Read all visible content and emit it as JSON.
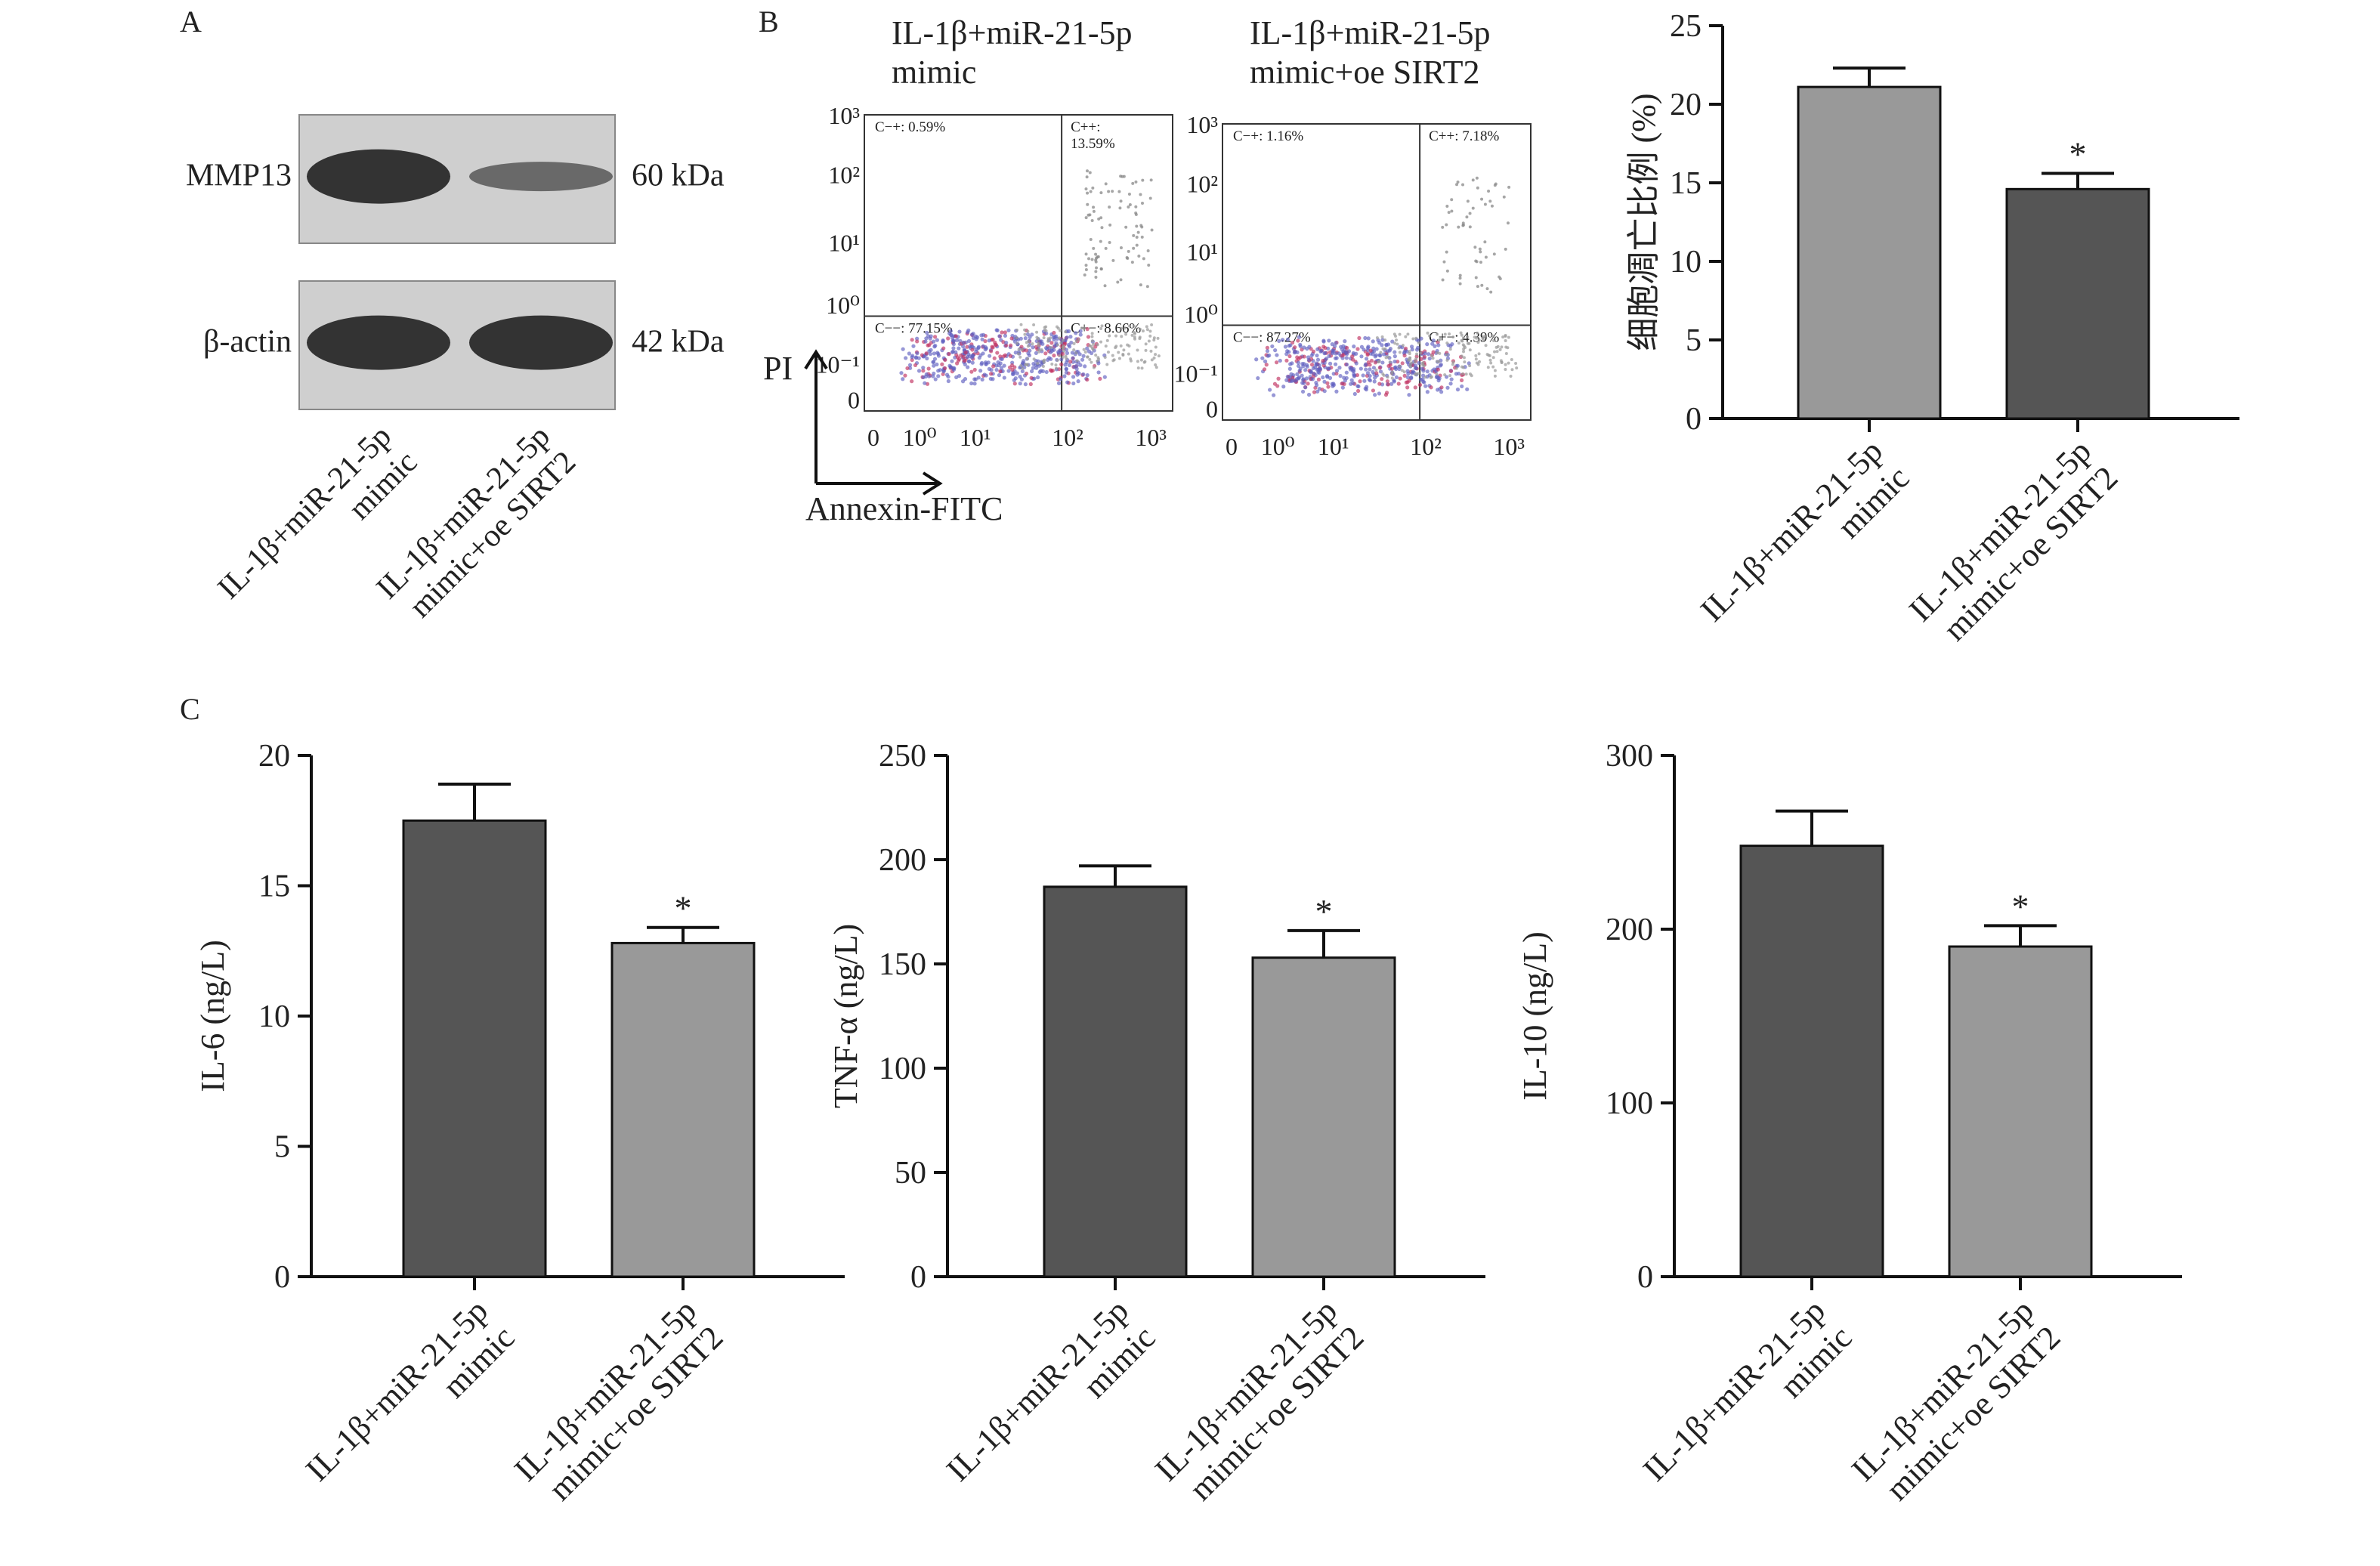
{
  "panel_labels": {
    "a": "A",
    "b": "B",
    "c": "C"
  },
  "colors": {
    "dark_bar": "#555555",
    "light_bar": "#999999",
    "axis": "#111111",
    "blot_band": "#2a2a2a",
    "blot_bg": "#cfcfcf",
    "flow_dot": "#6060c0",
    "flow_dot_hot": "#c03060"
  },
  "categories": [
    "IL-1β+miR-21-5p\nmimic",
    "IL-1β+miR-21-5p\nmimic+oe SIRT2"
  ],
  "western": {
    "rows": [
      {
        "protein": "MMP13",
        "size": "60 kDa",
        "intensities": [
          1.0,
          0.45
        ]
      },
      {
        "protein": "β-actin",
        "size": "42 kDa",
        "intensities": [
          1.0,
          1.0
        ]
      }
    ],
    "lanes": [
      "IL-1β+miR-21-5p\nmimic",
      "IL-1β+miR-21-5p\nmimic+oe SIRT2"
    ]
  },
  "flow": {
    "x_axis_label": "Annexin-FITC",
    "y_axis_label": "PI",
    "tick_labels": [
      "0",
      "10⁰",
      "10¹",
      "10²",
      "10³"
    ],
    "y_tick_labels": [
      "0",
      "10⁻¹",
      "10⁰",
      "10¹",
      "10²",
      "10³"
    ],
    "plots": [
      {
        "title": "IL-1β+miR-21-5p\nmimic",
        "quadrants": {
          "ul": "C−+: 0.59%",
          "ur": "C++:\n13.59%",
          "ll": "C−−: 77.15%",
          "lr": "C+−: 8.66%"
        }
      },
      {
        "title": "IL-1β+miR-21-5p\nmimic+oe SIRT2",
        "quadrants": {
          "ul": "C−+: 1.16%",
          "ur": "C++: 7.18%",
          "ll": "C−−: 87.27%",
          "lr": "C+−: 4.39%"
        }
      }
    ]
  },
  "chart_data": [
    {
      "type": "bar",
      "panel": "B",
      "categories": [
        "IL-1β+miR-21-5p\nmimic",
        "IL-1β+miR-21-5p\nmimic+oe SIRT2"
      ],
      "values": [
        21.1,
        14.6
      ],
      "errors": [
        1.2,
        1.0
      ],
      "significance": [
        "",
        "*"
      ],
      "ylabel": "细胞凋亡比例 (%)",
      "ylim": [
        0,
        25
      ],
      "yticks": [
        0,
        5,
        10,
        15,
        20,
        25
      ],
      "colors": [
        "#999999",
        "#555555"
      ]
    },
    {
      "type": "bar",
      "panel": "C",
      "categories": [
        "IL-1β+miR-21-5p\nmimic",
        "IL-1β+miR-21-5p\nmimic+oe SIRT2"
      ],
      "values": [
        17.5,
        12.8
      ],
      "errors": [
        1.4,
        0.6
      ],
      "significance": [
        "",
        "*"
      ],
      "ylabel": "IL-6 (ng/L)",
      "ylim": [
        0,
        20
      ],
      "yticks": [
        0,
        5,
        10,
        15,
        20
      ],
      "colors": [
        "#555555",
        "#999999"
      ]
    },
    {
      "type": "bar",
      "panel": "C",
      "categories": [
        "IL-1β+miR-21-5p\nmimic",
        "IL-1β+miR-21-5p\nmimic+oe SIRT2"
      ],
      "values": [
        187,
        153
      ],
      "errors": [
        10,
        13
      ],
      "significance": [
        "",
        "*"
      ],
      "ylabel": "TNF-α (ng/L)",
      "ylim": [
        0,
        250
      ],
      "yticks": [
        0,
        50,
        100,
        150,
        200,
        250
      ],
      "colors": [
        "#555555",
        "#999999"
      ]
    },
    {
      "type": "bar",
      "panel": "C",
      "categories": [
        "IL-1β+miR-21-5p\nmimic",
        "IL-1β+miR-21-5p\nmimic+oe SIRT2"
      ],
      "values": [
        248,
        190
      ],
      "errors": [
        20,
        12
      ],
      "significance": [
        "",
        "*"
      ],
      "ylabel": "IL-10 (ng/L)",
      "ylim": [
        0,
        300
      ],
      "yticks": [
        0,
        100,
        200,
        300
      ],
      "colors": [
        "#555555",
        "#999999"
      ]
    }
  ]
}
